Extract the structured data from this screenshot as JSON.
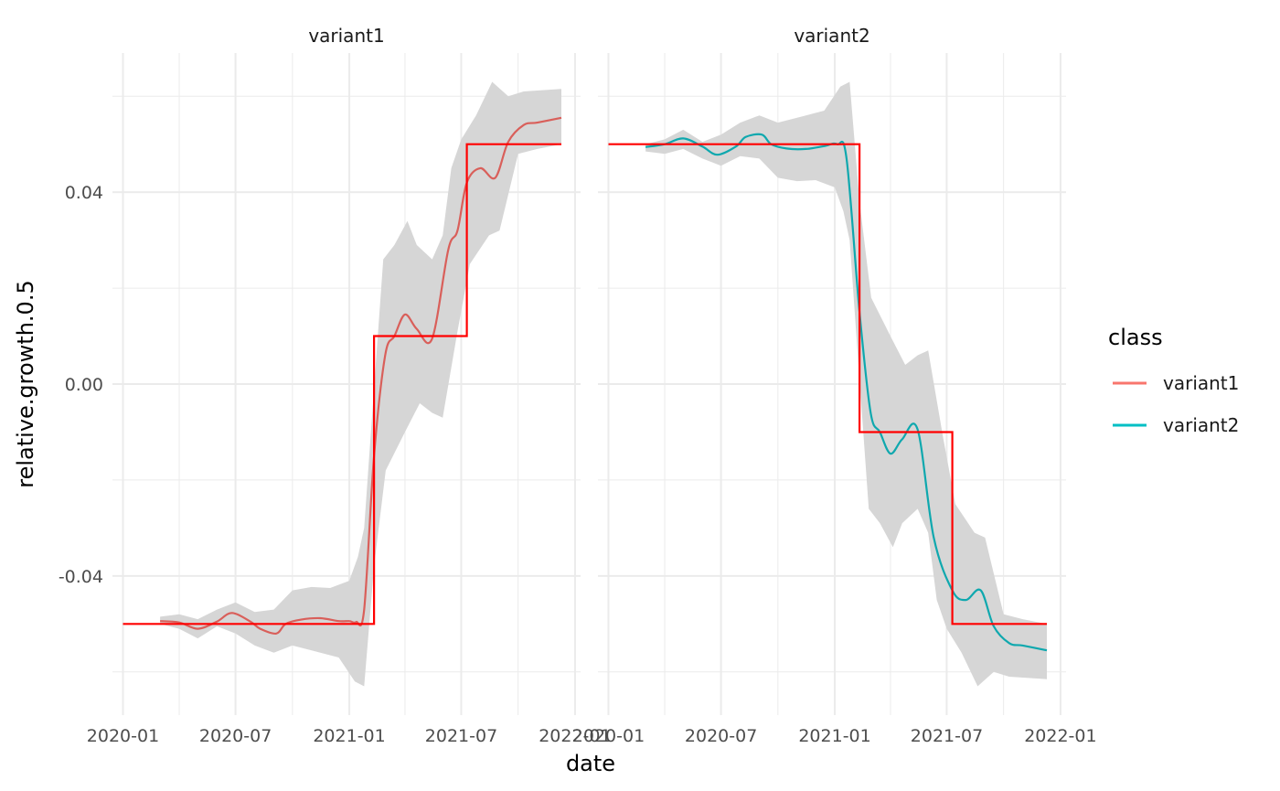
{
  "chart_data": {
    "type": "line",
    "facets": [
      "variant1",
      "variant2"
    ],
    "xlabel": "date",
    "ylabel": "relative.growth.0.5",
    "x_ticks": [
      "2020-01",
      "2020-07",
      "2021-01",
      "2021-07",
      "2022-01"
    ],
    "y_ticks": [
      "-0.04",
      "0.00",
      "0.04"
    ],
    "y_tick_values": [
      -0.04,
      0.0,
      0.04
    ],
    "xlim": [
      "2019-12-15",
      "2022-01-10"
    ],
    "ylim": [
      -0.069,
      0.069
    ],
    "grid": true,
    "legend": {
      "title": "class",
      "position": "right",
      "entries": [
        {
          "label": "variant1",
          "color": "#F8766D"
        },
        {
          "label": "variant2",
          "color": "#00BFC4"
        }
      ]
    },
    "colors": {
      "variant1_line": "#D95F5A",
      "variant2_line": "#0FA8AE",
      "truth": "#FF0000",
      "ribbon": "#D6D6D6",
      "grid": "#EBEBEB"
    },
    "panels": [
      {
        "name": "variant1",
        "truth_step": [
          [
            "2020-01-01",
            -0.05
          ],
          [
            "2021-02-10",
            -0.05
          ],
          [
            "2021-02-10",
            0.01
          ],
          [
            "2021-07-10",
            0.01
          ],
          [
            "2021-07-10",
            0.05
          ],
          [
            "2021-12-10",
            0.05
          ]
        ],
        "estimate": [
          [
            "2020-03-01",
            -0.0494
          ],
          [
            "2020-04-01",
            -0.0497
          ],
          [
            "2020-05-01",
            -0.051
          ],
          [
            "2020-06-01",
            -0.0495
          ],
          [
            "2020-06-25",
            -0.0477
          ],
          [
            "2020-07-25",
            -0.0495
          ],
          [
            "2020-08-10",
            -0.051
          ],
          [
            "2020-09-05",
            -0.052
          ],
          [
            "2020-09-20",
            -0.05
          ],
          [
            "2020-10-15",
            -0.0491
          ],
          [
            "2020-11-15",
            -0.0488
          ],
          [
            "2020-12-15",
            -0.0494
          ],
          [
            "2021-01-01",
            -0.0494
          ],
          [
            "2021-01-12",
            -0.0496
          ],
          [
            "2021-01-25",
            -0.047
          ],
          [
            "2021-02-10",
            -0.015
          ],
          [
            "2021-02-28",
            0.006
          ],
          [
            "2021-03-15",
            0.01
          ],
          [
            "2021-04-01",
            0.0145
          ],
          [
            "2021-04-20",
            0.0115
          ],
          [
            "2021-05-15",
            0.0095
          ],
          [
            "2021-06-10",
            0.028
          ],
          [
            "2021-06-25",
            0.032
          ],
          [
            "2021-07-10",
            0.042
          ],
          [
            "2021-08-01",
            0.045
          ],
          [
            "2021-08-25",
            0.043
          ],
          [
            "2021-09-15",
            0.0505
          ],
          [
            "2021-10-10",
            0.054
          ],
          [
            "2021-11-01",
            0.0545
          ],
          [
            "2021-12-10",
            0.0555
          ]
        ],
        "band_upper": [
          [
            "2020-03-01",
            -0.0485
          ],
          [
            "2020-04-01",
            -0.048
          ],
          [
            "2020-05-01",
            -0.049
          ],
          [
            "2020-06-01",
            -0.047
          ],
          [
            "2020-07-01",
            -0.0455
          ],
          [
            "2020-08-01",
            -0.0475
          ],
          [
            "2020-09-01",
            -0.047
          ],
          [
            "2020-10-01",
            -0.043
          ],
          [
            "2020-11-01",
            -0.0423
          ],
          [
            "2020-12-01",
            -0.0425
          ],
          [
            "2021-01-01",
            -0.041
          ],
          [
            "2021-01-15",
            -0.036
          ],
          [
            "2021-01-25",
            -0.03
          ],
          [
            "2021-02-05",
            -0.01
          ],
          [
            "2021-02-25",
            0.026
          ],
          [
            "2021-03-15",
            0.029
          ],
          [
            "2021-04-05",
            0.034
          ],
          [
            "2021-04-20",
            0.029
          ],
          [
            "2021-05-15",
            0.026
          ],
          [
            "2021-06-01",
            0.031
          ],
          [
            "2021-06-15",
            0.045
          ],
          [
            "2021-07-01",
            0.051
          ],
          [
            "2021-07-25",
            0.056
          ],
          [
            "2021-08-20",
            0.063
          ],
          [
            "2021-09-15",
            0.06
          ],
          [
            "2021-10-10",
            0.061
          ],
          [
            "2021-12-10",
            0.0615
          ]
        ],
        "band_lower": [
          [
            "2020-03-01",
            -0.05
          ],
          [
            "2020-04-01",
            -0.051
          ],
          [
            "2020-05-01",
            -0.053
          ],
          [
            "2020-06-01",
            -0.0505
          ],
          [
            "2020-07-01",
            -0.052
          ],
          [
            "2020-08-01",
            -0.0545
          ],
          [
            "2020-09-01",
            -0.056
          ],
          [
            "2020-10-01",
            -0.0545
          ],
          [
            "2020-11-01",
            -0.0555
          ],
          [
            "2020-12-15",
            -0.057
          ],
          [
            "2021-01-10",
            -0.062
          ],
          [
            "2021-01-25",
            -0.063
          ],
          [
            "2021-02-10",
            -0.038
          ],
          [
            "2021-03-01",
            -0.018
          ],
          [
            "2021-04-01",
            -0.01
          ],
          [
            "2021-04-25",
            -0.004
          ],
          [
            "2021-05-15",
            -0.006
          ],
          [
            "2021-06-01",
            -0.007
          ],
          [
            "2021-06-25",
            0.011
          ],
          [
            "2021-07-15",
            0.025
          ],
          [
            "2021-08-15",
            0.031
          ],
          [
            "2021-09-01",
            0.032
          ],
          [
            "2021-10-01",
            0.048
          ],
          [
            "2021-11-01",
            0.049
          ],
          [
            "2021-12-10",
            0.05
          ]
        ]
      },
      {
        "name": "variant2",
        "truth_step": [
          [
            "2020-01-01",
            0.05
          ],
          [
            "2021-02-10",
            0.05
          ],
          [
            "2021-02-10",
            -0.01
          ],
          [
            "2021-07-10",
            -0.01
          ],
          [
            "2021-07-10",
            -0.05
          ],
          [
            "2021-12-10",
            -0.05
          ]
        ],
        "estimate": [
          [
            "2020-03-01",
            0.0494
          ],
          [
            "2020-04-01",
            0.05
          ],
          [
            "2020-05-01",
            0.0512
          ],
          [
            "2020-06-01",
            0.0495
          ],
          [
            "2020-06-25",
            0.0478
          ],
          [
            "2020-07-25",
            0.0495
          ],
          [
            "2020-08-10",
            0.0515
          ],
          [
            "2020-09-05",
            0.052
          ],
          [
            "2020-09-20",
            0.05
          ],
          [
            "2020-10-15",
            0.0491
          ],
          [
            "2020-11-15",
            0.049
          ],
          [
            "2020-12-15",
            0.0496
          ],
          [
            "2021-01-05",
            0.05
          ],
          [
            "2021-01-20",
            0.047
          ],
          [
            "2021-02-10",
            0.015
          ],
          [
            "2021-02-28",
            -0.006
          ],
          [
            "2021-03-15",
            -0.01
          ],
          [
            "2021-04-01",
            -0.0145
          ],
          [
            "2021-04-20",
            -0.0115
          ],
          [
            "2021-05-15",
            -0.0095
          ],
          [
            "2021-06-10",
            -0.032
          ],
          [
            "2021-07-10",
            -0.043
          ],
          [
            "2021-08-01",
            -0.045
          ],
          [
            "2021-08-25",
            -0.043
          ],
          [
            "2021-09-15",
            -0.0505
          ],
          [
            "2021-10-10",
            -0.054
          ],
          [
            "2021-11-01",
            -0.0545
          ],
          [
            "2021-12-10",
            -0.0555
          ]
        ],
        "band_upper": [
          [
            "2020-03-01",
            0.05
          ],
          [
            "2020-04-01",
            0.051
          ],
          [
            "2020-05-01",
            0.053
          ],
          [
            "2020-06-01",
            0.0505
          ],
          [
            "2020-07-01",
            0.052
          ],
          [
            "2020-08-01",
            0.0545
          ],
          [
            "2020-09-01",
            0.056
          ],
          [
            "2020-10-01",
            0.0545
          ],
          [
            "2020-11-01",
            0.0555
          ],
          [
            "2020-12-15",
            0.057
          ],
          [
            "2021-01-10",
            0.062
          ],
          [
            "2021-01-25",
            0.063
          ],
          [
            "2021-02-10",
            0.038
          ],
          [
            "2021-03-01",
            0.018
          ],
          [
            "2021-04-01",
            0.01
          ],
          [
            "2021-04-25",
            0.004
          ],
          [
            "2021-05-15",
            0.006
          ],
          [
            "2021-06-01",
            0.007
          ],
          [
            "2021-06-25",
            -0.011
          ],
          [
            "2021-07-15",
            -0.025
          ],
          [
            "2021-08-15",
            -0.031
          ],
          [
            "2021-09-01",
            -0.032
          ],
          [
            "2021-10-01",
            -0.048
          ],
          [
            "2021-11-01",
            -0.049
          ],
          [
            "2021-12-10",
            -0.05
          ]
        ],
        "band_lower": [
          [
            "2020-03-01",
            0.0485
          ],
          [
            "2020-04-01",
            0.048
          ],
          [
            "2020-05-01",
            0.049
          ],
          [
            "2020-06-01",
            0.047
          ],
          [
            "2020-07-01",
            0.0455
          ],
          [
            "2020-08-01",
            0.0475
          ],
          [
            "2020-09-01",
            0.047
          ],
          [
            "2020-10-01",
            0.043
          ],
          [
            "2020-11-01",
            0.0423
          ],
          [
            "2020-12-01",
            0.0425
          ],
          [
            "2021-01-01",
            0.041
          ],
          [
            "2021-01-15",
            0.036
          ],
          [
            "2021-01-25",
            0.03
          ],
          [
            "2021-02-05",
            0.01
          ],
          [
            "2021-02-25",
            -0.026
          ],
          [
            "2021-03-15",
            -0.029
          ],
          [
            "2021-04-05",
            -0.034
          ],
          [
            "2021-04-20",
            -0.029
          ],
          [
            "2021-05-15",
            -0.026
          ],
          [
            "2021-06-01",
            -0.031
          ],
          [
            "2021-06-15",
            -0.045
          ],
          [
            "2021-07-01",
            -0.051
          ],
          [
            "2021-07-25",
            -0.056
          ],
          [
            "2021-08-20",
            -0.063
          ],
          [
            "2021-09-15",
            -0.06
          ],
          [
            "2021-10-10",
            -0.061
          ],
          [
            "2021-12-10",
            -0.0615
          ]
        ]
      }
    ]
  }
}
